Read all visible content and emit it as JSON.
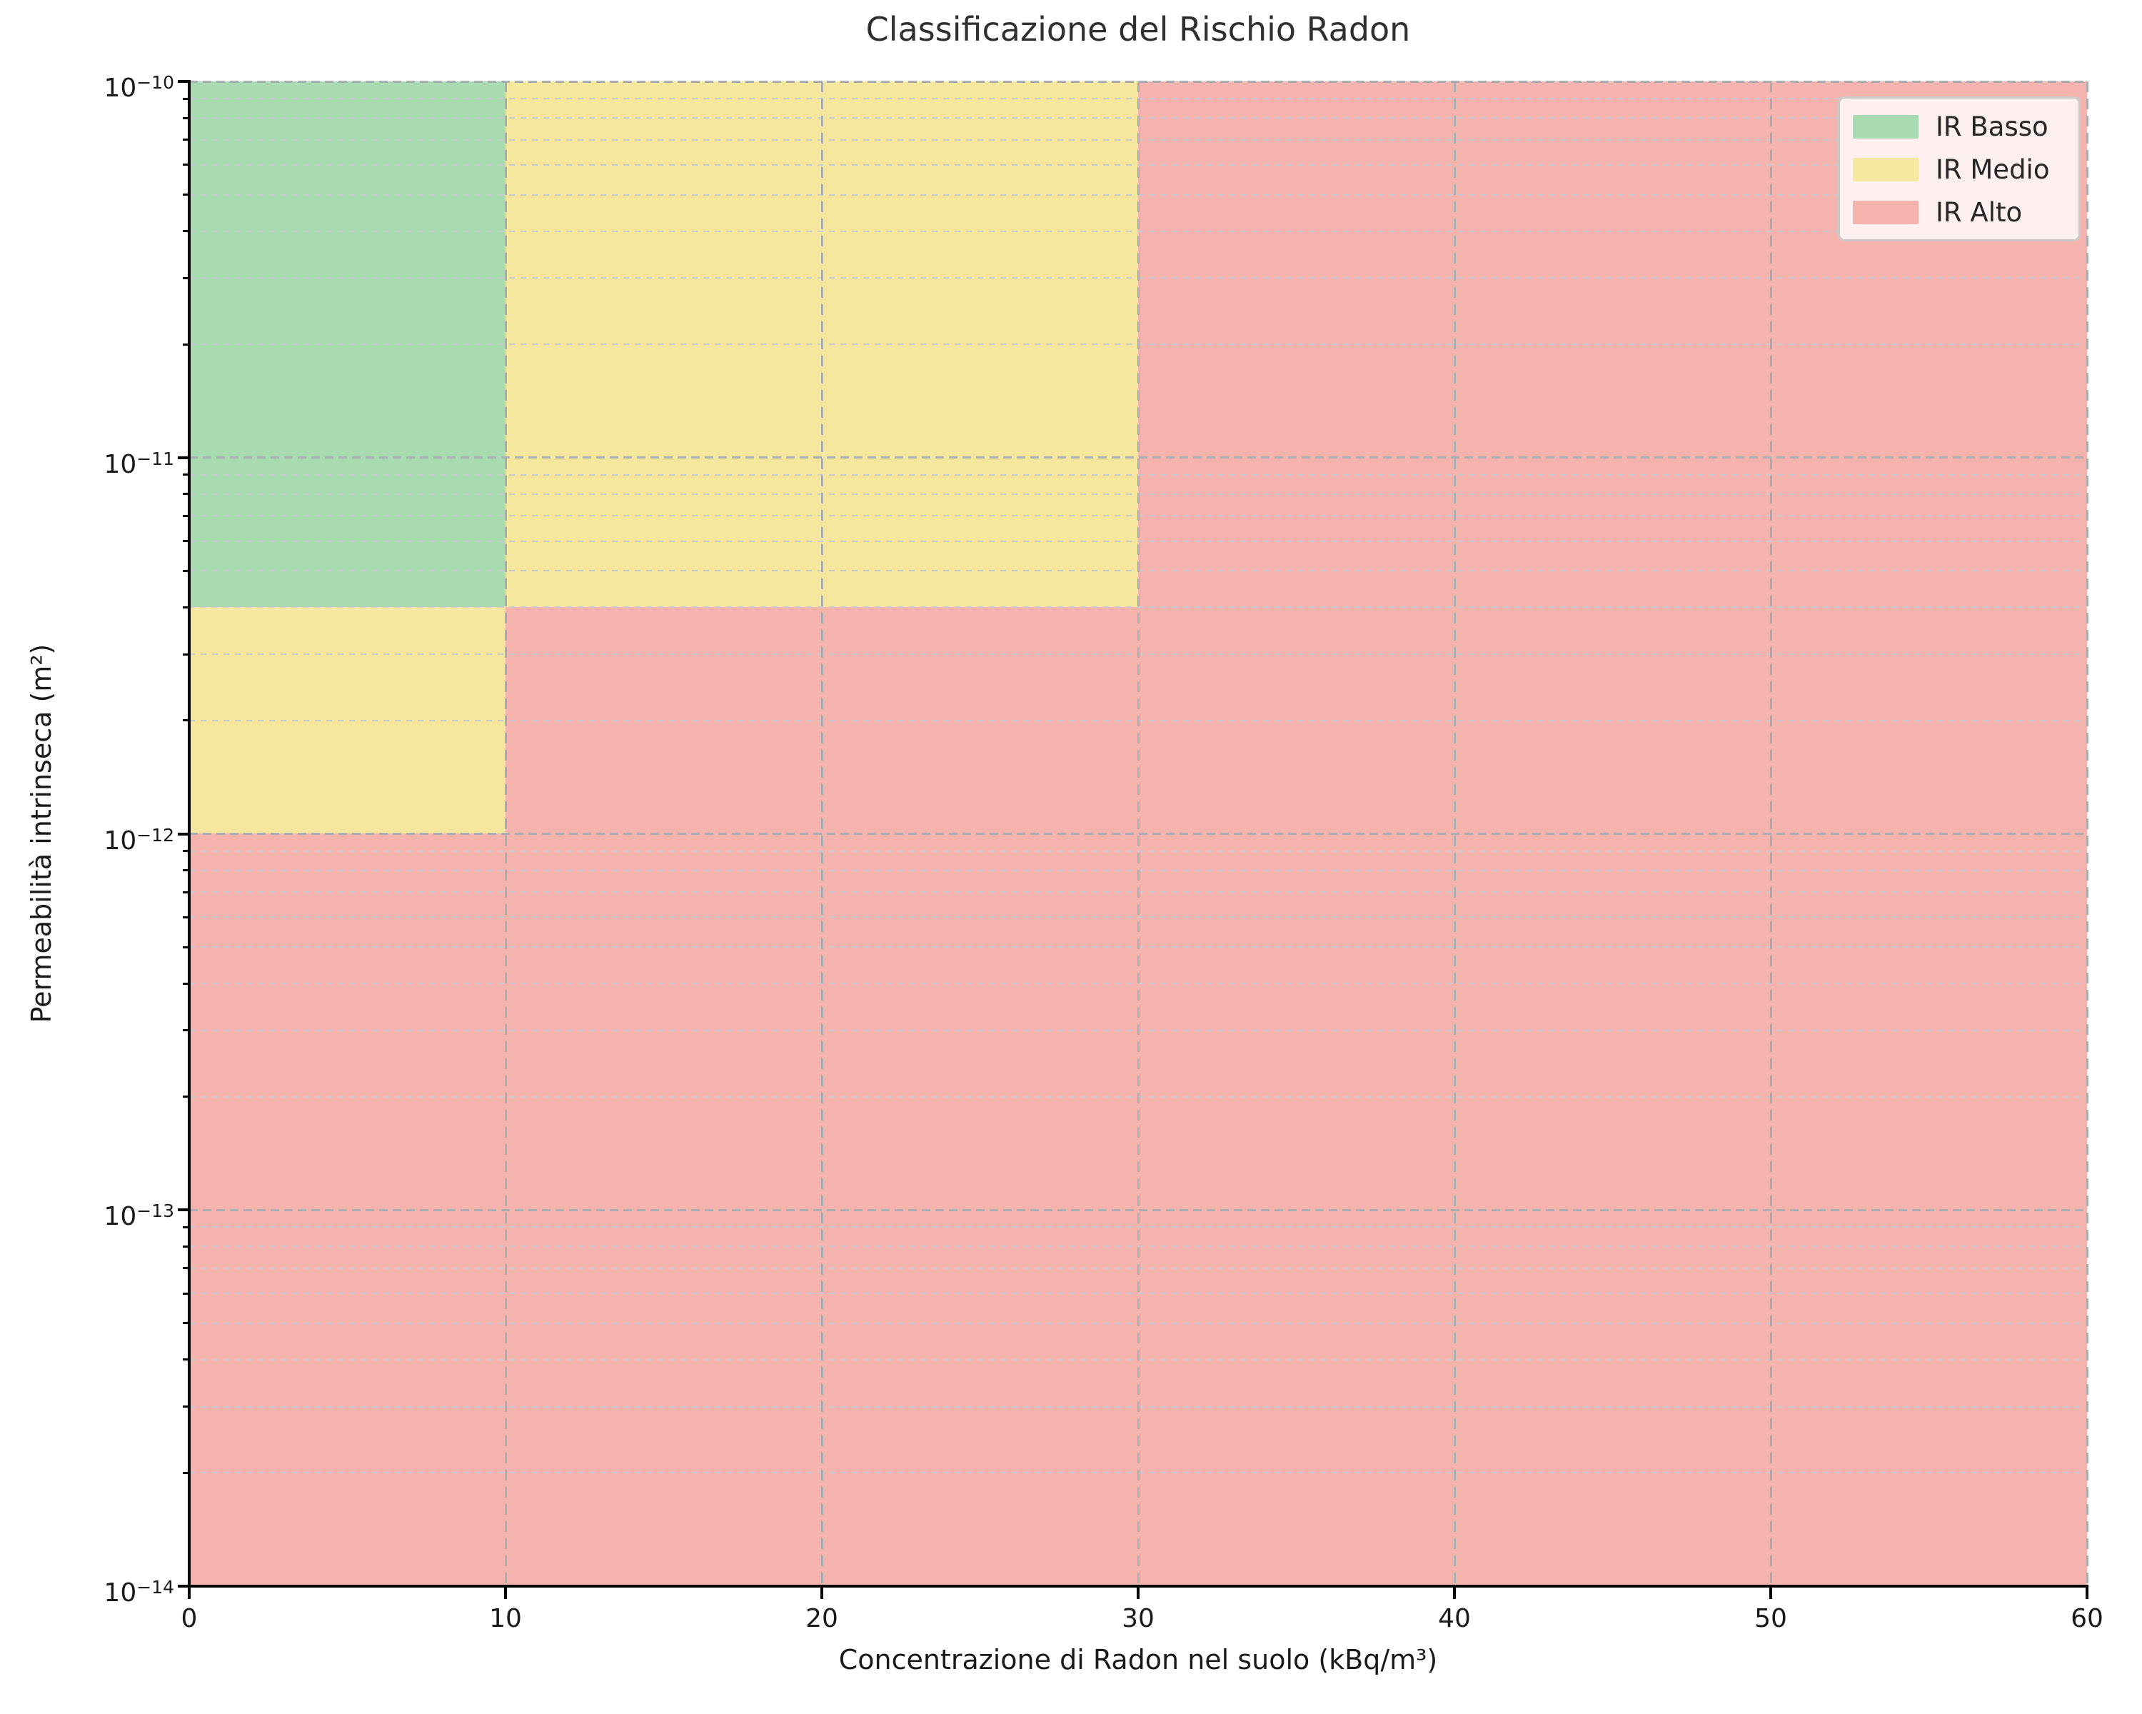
{
  "title": "Classificazione del Rischio Radon",
  "axes": {
    "xlabel": "Concentrazione di Radon nel suolo (kBq/m³)",
    "ylabel": "Permeabilità intrinseca (m²)"
  },
  "x_tick_labels": [
    "0",
    "10",
    "20",
    "30",
    "40",
    "50",
    "60"
  ],
  "y_tick_labels": [
    {
      "base": "10",
      "exp": "−10"
    },
    {
      "base": "10",
      "exp": "−11"
    },
    {
      "base": "10",
      "exp": "−12"
    },
    {
      "base": "10",
      "exp": "−13"
    },
    {
      "base": "10",
      "exp": "−14"
    }
  ],
  "legend": {
    "items": [
      {
        "label": "IR Basso",
        "color": "#a8dcb0"
      },
      {
        "label": "IR Medio",
        "color": "#f6e79e"
      },
      {
        "label": "IR Alto",
        "color": "#f5b3ae"
      }
    ]
  },
  "colors": {
    "grid_major": "#a9aeb5",
    "grid_minor": "#c7cad1",
    "spine": "#000000",
    "title_text": "#303030",
    "text": "#1a1a1a",
    "legend_bg": "#fdf0ef",
    "legend_border": "#c9c9c9"
  },
  "chart_data": {
    "type": "area",
    "title": "Classificazione del Rischio Radon",
    "xlabel": "Concentrazione di Radon nel suolo (kBq/m³)",
    "ylabel": "Permeabilità intrinseca (m²)",
    "xlim": [
      0,
      60
    ],
    "ylim": [
      1e-14,
      1e-10
    ],
    "y_scale": "log",
    "x_major_ticks": [
      0,
      10,
      20,
      30,
      40,
      50,
      60
    ],
    "y_major_ticks": [
      1e-10,
      1e-11,
      1e-12,
      1e-13,
      1e-14
    ],
    "grid": {
      "visible": true,
      "style": "dashed",
      "minor_y": true,
      "major_x": true
    },
    "legend_position": "upper right",
    "thresholds": {
      "concentration_kBq_m3": [
        10,
        30
      ],
      "permeability_m2": [
        1e-12,
        4e-12
      ]
    },
    "regions": [
      {
        "name": "IR Alto",
        "color": "#f5b3ae",
        "rects": [
          {
            "x0": 0,
            "x1": 60,
            "y0": 1e-14,
            "y1": 1e-10
          }
        ]
      },
      {
        "name": "IR Medio",
        "color": "#f6e79e",
        "rects": [
          {
            "x0": 10,
            "x1": 30,
            "y0": 4e-12,
            "y1": 1e-10
          },
          {
            "x0": 0,
            "x1": 10,
            "y0": 1e-12,
            "y1": 4e-12
          }
        ]
      },
      {
        "name": "IR Basso",
        "color": "#a8dcb0",
        "rects": [
          {
            "x0": 0,
            "x1": 10,
            "y0": 4e-12,
            "y1": 1e-10
          }
        ]
      }
    ]
  }
}
